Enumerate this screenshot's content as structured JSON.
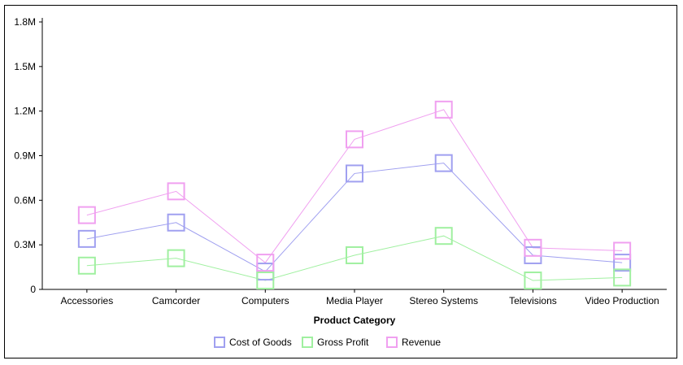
{
  "chart_data": {
    "type": "line",
    "title": "",
    "xlabel": "Product Category",
    "ylabel": "",
    "categories": [
      "Accessories",
      "Camcorder",
      "Computers",
      "Media Player",
      "Stereo Systems",
      "Televisions",
      "Video Production"
    ],
    "y_ticks": [
      "0",
      "0.3M",
      "0.6M",
      "0.9M",
      "1.2M",
      "1.5M",
      "1.8M"
    ],
    "y_tick_values": [
      0,
      300000,
      600000,
      900000,
      1200000,
      1500000,
      1800000
    ],
    "ylim": [
      0,
      1800000
    ],
    "grid": false,
    "legend_position": "bottom",
    "series": [
      {
        "name": "Cost of Goods",
        "color": "#a0a0f0",
        "values": [
          340000,
          450000,
          120000,
          780000,
          850000,
          230000,
          180000
        ]
      },
      {
        "name": "Gross Profit",
        "color": "#a0f0a0",
        "values": [
          160000,
          210000,
          60000,
          230000,
          360000,
          60000,
          80000
        ]
      },
      {
        "name": "Revenue",
        "color": "#f0a0f0",
        "values": [
          500000,
          660000,
          180000,
          1010000,
          1210000,
          280000,
          260000
        ]
      }
    ]
  }
}
